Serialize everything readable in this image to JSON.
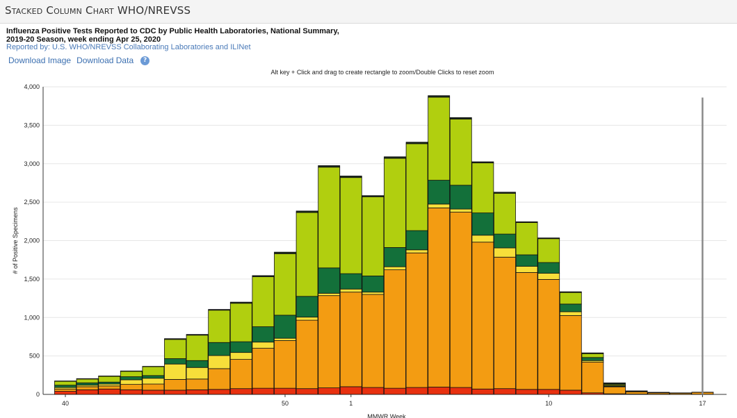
{
  "header": {
    "title": "Stacked Column Chart WHO/NREVSS"
  },
  "chart_title": {
    "line1": "Influenza Positive Tests Reported to CDC by Public Health Laboratories, National Summary,",
    "line2": "2019-20 Season, week ending Apr 25, 2020"
  },
  "reported_by": "Reported by: U.S. WHO/NREVSS Collaborating Laboratories and ILINet",
  "links": {
    "download_image": "Download Image",
    "download_data": "Download Data",
    "help": "?"
  },
  "zoom_hint": "Alt key + Click and drag to create rectangle to zoom/Double Clicks to reset zoom",
  "chart_data": {
    "type": "bar",
    "stacked": true,
    "ylabel": "# of Positive Specimens",
    "xlabel": "MMWR Week",
    "ylim": [
      0,
      4000
    ],
    "yticks": [
      0,
      500,
      1000,
      1500,
      2000,
      2500,
      3000,
      3500,
      4000
    ],
    "ytick_labels": [
      "0",
      "500",
      "1,000",
      "1,500",
      "2,000",
      "2,500",
      "3,000",
      "3,500",
      "4,000"
    ],
    "xtick_labels": [
      {
        "label": "40",
        "index": 0
      },
      {
        "label": "50",
        "index": 10
      },
      {
        "label": "1",
        "index": 13
      },
      {
        "label": "10",
        "index": 22
      },
      {
        "label": "17",
        "index": 29
      }
    ],
    "current_week_index": 29,
    "grid": true,
    "categories": [
      "40",
      "41",
      "42",
      "43",
      "44",
      "45",
      "46",
      "47",
      "48",
      "49",
      "50",
      "51",
      "52",
      "1",
      "2",
      "3",
      "4",
      "5",
      "6",
      "7",
      "8",
      "9",
      "10",
      "11",
      "12",
      "13",
      "14",
      "15",
      "16",
      "17"
    ],
    "series": [
      {
        "color": "#e8300f",
        "values": [
          40,
          60,
          70,
          60,
          55,
          55,
          60,
          65,
          75,
          80,
          80,
          75,
          85,
          100,
          90,
          80,
          90,
          95,
          90,
          70,
          75,
          65,
          65,
          55,
          20,
          8,
          4,
          2,
          1,
          1
        ]
      },
      {
        "color": "#f39c12",
        "values": [
          30,
          40,
          40,
          70,
          80,
          140,
          140,
          270,
          380,
          520,
          620,
          890,
          1200,
          1230,
          1210,
          1540,
          1750,
          2330,
          2280,
          1910,
          1710,
          1520,
          1430,
          970,
          400,
          90,
          30,
          18,
          15,
          25
        ]
      },
      {
        "color": "#f7df3a",
        "values": [
          20,
          20,
          25,
          60,
          75,
          200,
          150,
          170,
          90,
          80,
          30,
          40,
          30,
          40,
          30,
          40,
          40,
          50,
          40,
          90,
          120,
          80,
          80,
          50,
          20,
          5,
          2,
          1,
          0,
          0
        ]
      },
      {
        "color": "#13703a",
        "values": [
          30,
          30,
          25,
          40,
          35,
          70,
          90,
          170,
          140,
          200,
          300,
          270,
          330,
          200,
          210,
          250,
          250,
          310,
          310,
          290,
          180,
          150,
          140,
          100,
          40,
          10,
          3,
          2,
          1,
          0
        ]
      },
      {
        "color": "#b1cf0f",
        "values": [
          50,
          50,
          75,
          70,
          115,
          250,
          330,
          420,
          500,
          650,
          800,
          1090,
          1310,
          1250,
          1030,
          1160,
          1130,
          1080,
          860,
          650,
          530,
          420,
          310,
          150,
          50,
          15,
          5,
          3,
          2,
          2
        ]
      },
      {
        "color": "#1b2a1b",
        "values": [
          5,
          5,
          5,
          5,
          5,
          10,
          10,
          10,
          15,
          15,
          20,
          20,
          20,
          20,
          15,
          20,
          20,
          20,
          20,
          15,
          15,
          10,
          10,
          10,
          10,
          22,
          2,
          1,
          1,
          1
        ]
      }
    ]
  }
}
